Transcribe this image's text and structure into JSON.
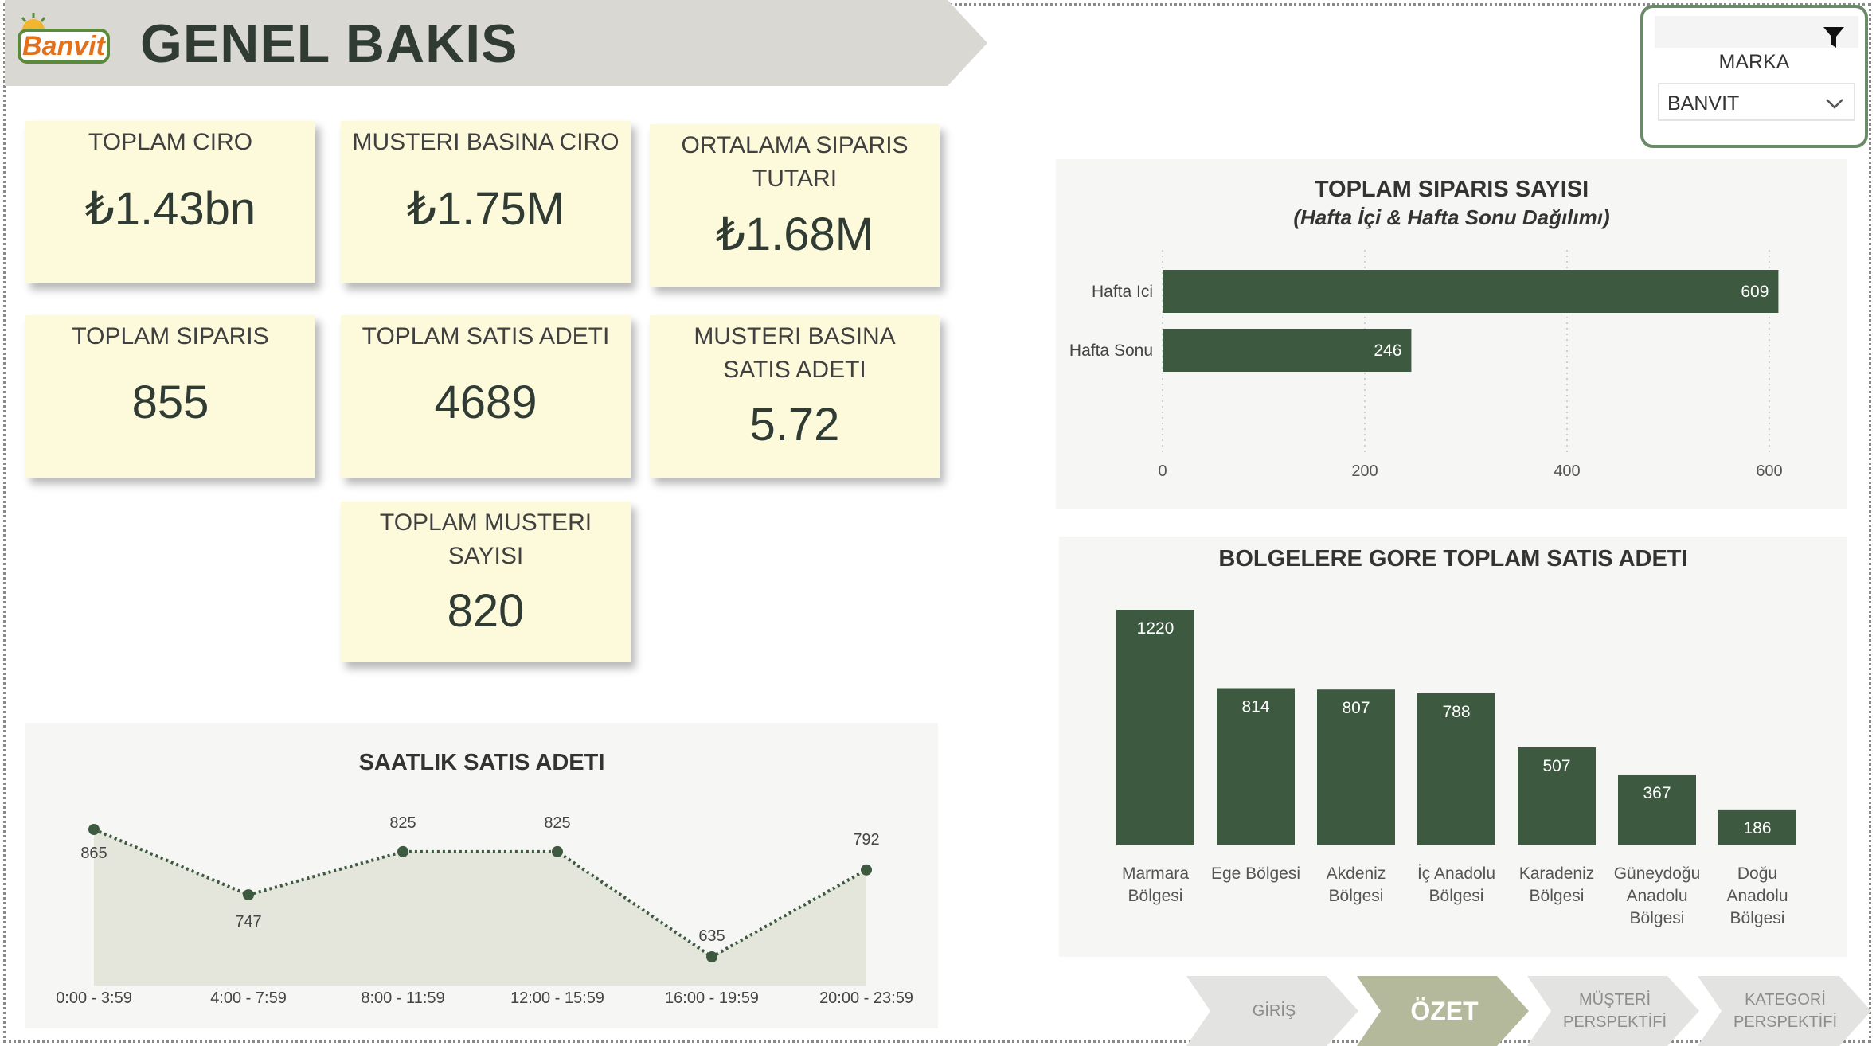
{
  "header": {
    "logo_text": "Banvit",
    "title": "GENEL BAKIS"
  },
  "kpis": [
    {
      "label": "TOPLAM CIRO",
      "value": "₺1.43bn"
    },
    {
      "label": "MUSTERI BASINA CIRO",
      "value": "₺1.75M"
    },
    {
      "label": "ORTALAMA SIPARIS TUTARI",
      "value": "₺1.68M"
    },
    {
      "label": "TOPLAM SIPARIS",
      "value": "855"
    },
    {
      "label": "TOPLAM SATIS ADETI",
      "value": "4689"
    },
    {
      "label": "MUSTERI BASINA SATIS ADETI",
      "value": "5.72"
    },
    {
      "label": "TOPLAM MUSTERI SAYISI",
      "value": "820"
    }
  ],
  "slicer": {
    "label": "MARKA",
    "value": "BANVIT",
    "icon": "funnel-icon"
  },
  "chart_data": [
    {
      "type": "bar",
      "orientation": "horizontal",
      "title": "TOPLAM SIPARIS SAYISI",
      "subtitle": "(Hafta İçi & Hafta Sonu Dağılımı)",
      "categories": [
        "Hafta Ici",
        "Hafta Sonu"
      ],
      "values": [
        609,
        246
      ],
      "xlim": [
        0,
        600
      ],
      "xticks": [
        0,
        200,
        400,
        600
      ],
      "grid": true,
      "color": "#3d5a40"
    },
    {
      "type": "bar",
      "title": "BOLGELERE GORE TOPLAM SATIS ADETI",
      "categories": [
        "Marmara Bölgesi",
        "Ege Bölgesi",
        "Akdeniz Bölgesi",
        "İç Anadolu Bölgesi",
        "Karadeniz Bölgesi",
        "Güneydoğu Anadolu Bölgesi",
        "Doğu Anadolu Bölgesi"
      ],
      "category_lines": [
        [
          "Marmara",
          "Bölgesi"
        ],
        [
          "Ege Bölgesi"
        ],
        [
          "Akdeniz",
          "Bölgesi"
        ],
        [
          "İç Anadolu",
          "Bölgesi"
        ],
        [
          "Karadeniz",
          "Bölgesi"
        ],
        [
          "Güneydoğu",
          "Anadolu",
          "Bölgesi"
        ],
        [
          "Doğu",
          "Anadolu",
          "Bölgesi"
        ]
      ],
      "values": [
        1220,
        814,
        807,
        788,
        507,
        367,
        186
      ],
      "color": "#3d5a40"
    },
    {
      "type": "line",
      "title": "SAATLIK SATIS ADETI",
      "categories": [
        "0:00 - 3:59",
        "4:00 - 7:59",
        "8:00 - 11:59",
        "12:00 - 15:59",
        "16:00 - 19:59",
        "20:00 - 23:59"
      ],
      "values": [
        865,
        747,
        825,
        825,
        635,
        792
      ],
      "area": true,
      "line_style": "dotted",
      "color": "#3d5a40",
      "fill": "#e4e6dc"
    }
  ],
  "nav": [
    {
      "label": "GİRİŞ",
      "active": false
    },
    {
      "label": "ÖZET",
      "active": true
    },
    {
      "label": "MÜŞTERİ PERSPEKTİFİ",
      "active": false
    },
    {
      "label": "KATEGORİ PERSPEKTİFİ",
      "active": false
    }
  ],
  "colors": {
    "dark_green": "#3d5a40",
    "card_bg": "#fdfadc",
    "banner": "#d9d8d2",
    "nav_active": "#b5b99b",
    "nav_inactive": "#e3e4e1"
  }
}
